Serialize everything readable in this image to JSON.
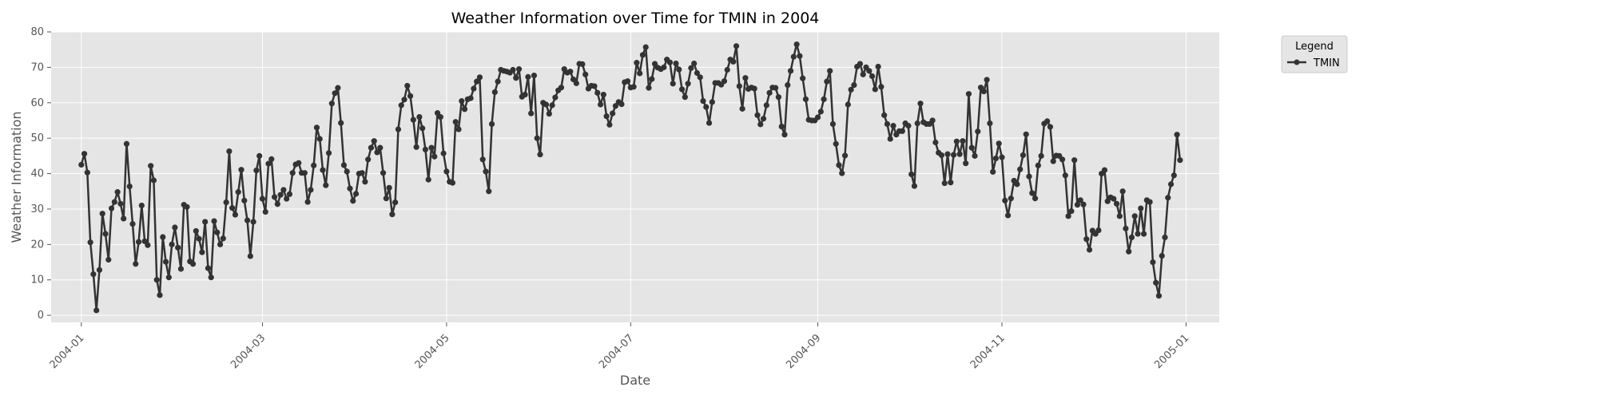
{
  "chart_data": {
    "type": "line",
    "title": "Weather Information over Time for TMIN in 2004",
    "xlabel": "Date",
    "ylabel": "Weather Information",
    "xlim": [
      "2003-12-22",
      "2005-01-12"
    ],
    "ylim": [
      -2,
      80
    ],
    "y_ticks": [
      0,
      10,
      20,
      30,
      40,
      50,
      60,
      70,
      80
    ],
    "x_ticks": [
      "2004-01",
      "2004-03",
      "2004-05",
      "2004-07",
      "2004-09",
      "2004-11",
      "2005-01"
    ],
    "grid": true,
    "legend": {
      "title": "Legend",
      "position": "outside-top-right"
    },
    "colors": {
      "background": "#e5e5e5",
      "grid": "#ffffff",
      "line": "#333333",
      "text": "#555555"
    },
    "series": [
      {
        "name": "TMIN",
        "start": "2004-01-01",
        "step_days": 1,
        "values": [
          42.5,
          45.6,
          40.3,
          20.6,
          11.6,
          1.4,
          12.8,
          28.7,
          23.0,
          15.7,
          30.2,
          32.0,
          34.8,
          31.5,
          27.3,
          48.4,
          36.4,
          25.8,
          14.5,
          20.7,
          31.0,
          20.9,
          19.8,
          42.2,
          38.1,
          10.0,
          5.7,
          22.1,
          15.1,
          10.7,
          20.0,
          24.8,
          19.1,
          13.1,
          31.2,
          30.6,
          15.2,
          14.5,
          23.8,
          21.6,
          17.8,
          26.4,
          13.3,
          10.7,
          26.6,
          23.4,
          20.0,
          21.7,
          31.9,
          46.3,
          30.3,
          28.4,
          34.8,
          41.1,
          32.4,
          26.8,
          16.7,
          26.4,
          40.9,
          45.0,
          32.9,
          29.2,
          42.8,
          44.1,
          33.4,
          31.4,
          34.0,
          35.4,
          32.9,
          34.2,
          40.2,
          42.6,
          43.0,
          40.2,
          40.2,
          32.0,
          35.4,
          42.3,
          53.0,
          49.8,
          41.0,
          36.7,
          45.8,
          59.8,
          62.7,
          64.2,
          54.3,
          42.4,
          40.6,
          35.8,
          32.3,
          34.3,
          40.0,
          40.2,
          37.7,
          44.0,
          47.3,
          49.2,
          46.0,
          47.3,
          40.2,
          33.0,
          36.0,
          28.5,
          31.9,
          52.5,
          59.3,
          60.9,
          64.8,
          61.9,
          55.2,
          47.5,
          56.0,
          52.8,
          46.8,
          38.3,
          47.3,
          44.8,
          57.1,
          56.0,
          45.7,
          40.6,
          37.7,
          37.4,
          54.6,
          52.5,
          60.5,
          58.2,
          61.0,
          61.3,
          64.0,
          66.0,
          67.2,
          44.0,
          40.6,
          35.0,
          54.0,
          63.0,
          66.0,
          69.3,
          69.0,
          68.8,
          68.5,
          69.3,
          67.0,
          69.5,
          61.7,
          62.3,
          67.3,
          57.0,
          67.7,
          50.0,
          45.4,
          60.0,
          59.5,
          56.9,
          59.3,
          61.5,
          63.5,
          64.3,
          69.5,
          68.5,
          68.8,
          66.6,
          65.5,
          71.0,
          70.9,
          68.0,
          64.0,
          64.8,
          64.7,
          62.8,
          59.5,
          62.3,
          56.2,
          53.8,
          57.0,
          59.1,
          60.2,
          59.6,
          65.8,
          66.1,
          64.3,
          64.5,
          71.3,
          68.3,
          73.5,
          75.7,
          64.2,
          66.7,
          71.0,
          69.9,
          69.5,
          70.0,
          72.2,
          71.4,
          65.4,
          71.1,
          69.4,
          63.8,
          61.6,
          65.4,
          69.8,
          71.1,
          68.4,
          67.2,
          60.5,
          58.8,
          54.3,
          60.2,
          65.6,
          65.6,
          65.1,
          66.1,
          69.3,
          72.2,
          71.6,
          76.0,
          64.7,
          58.3,
          67.0,
          63.9,
          64.3,
          64.0,
          56.5,
          53.9,
          55.5,
          59.3,
          62.8,
          64.3,
          64.2,
          61.6,
          53.3,
          51.0,
          65.0,
          69.0,
          73.0,
          76.5,
          73.2,
          66.9,
          61.0,
          55.2,
          55.0,
          55.0,
          55.9,
          57.5,
          61.0,
          66.0,
          69.0,
          54.0,
          48.4,
          42.4,
          40.1,
          45.1,
          59.5,
          63.7,
          65.0,
          70.2,
          71.0,
          68.0,
          70.0,
          69.0,
          67.5,
          63.8,
          70.2,
          64.5,
          56.5,
          54.0,
          49.8,
          53.5,
          51.0,
          52.0,
          52.0,
          54.2,
          53.5,
          39.8,
          36.5,
          54.2,
          59.8,
          54.5,
          54.0,
          54.0,
          55.0,
          48.8,
          45.9,
          45.2,
          37.3,
          45.5,
          37.5,
          45.3,
          49.1,
          45.5,
          49.2,
          42.9,
          62.5,
          47.3,
          45.0,
          51.9,
          64.3,
          63.2,
          66.5,
          54.2,
          40.5,
          44.3,
          48.5,
          44.6,
          32.4,
          28.2,
          33.0,
          38.0,
          37.0,
          41.2,
          45.2,
          51.1,
          39.2,
          34.5,
          33.0,
          42.3,
          45.0,
          54.1,
          54.8,
          53.2,
          43.5,
          45.1,
          45.0,
          44.0,
          39.5,
          28.0,
          29.4,
          43.8,
          31.2,
          32.5,
          31.3,
          21.5,
          18.5,
          23.9,
          23.0,
          24.0,
          40.0,
          41.0,
          32.2,
          33.3,
          32.9,
          31.5,
          28.0,
          35.0,
          24.5,
          18.0,
          22.0,
          28.0,
          23.0,
          30.2,
          23.0,
          32.5,
          32.0,
          15.0,
          9.2,
          5.5,
          16.8,
          22.0,
          33.2,
          37.0,
          39.5,
          51.0,
          43.8
        ]
      }
    ]
  }
}
